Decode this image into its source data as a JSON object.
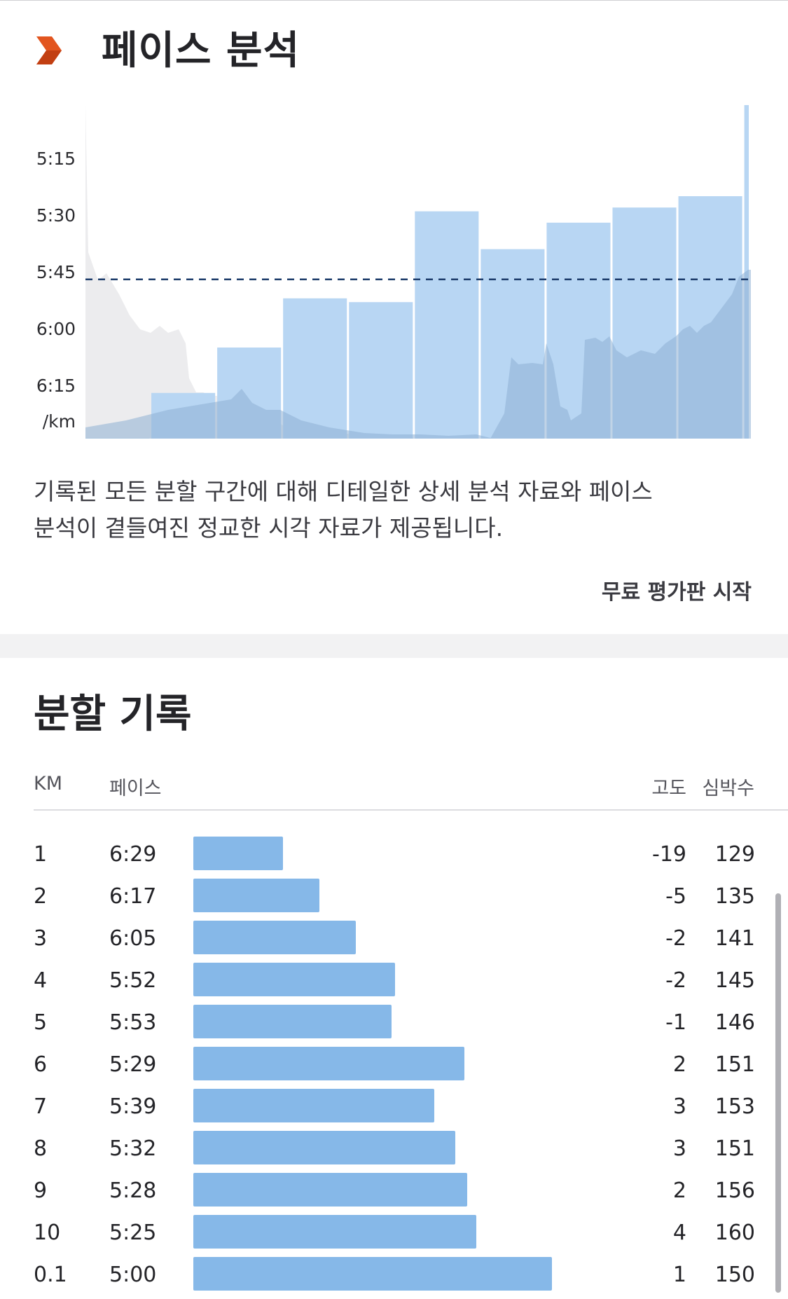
{
  "pace_analysis": {
    "title": "페이스 분석",
    "logo_icon": "strava-chevron-icon",
    "description_line1": "기록된 모든 분할 구간에 대해 디테일한 상세 분석 자료와 페이스",
    "description_line2": "분석이 곁들여진 정교한 시각 자료가 제공됩니다.",
    "trial_link": "무료 평가판 시작",
    "accent_color": "#e2551f",
    "bar_color": "#b8d6f3",
    "dashed_line_color": "#1d3c6b"
  },
  "chart_data": {
    "type": "bar",
    "y_ticks": [
      "5:15",
      "5:30",
      "5:45",
      "6:00",
      "6:15"
    ],
    "y_unit": "/km",
    "y_inverted": true,
    "categories": [
      "1",
      "2",
      "3",
      "4",
      "5",
      "6",
      "7",
      "8",
      "9",
      "10",
      "0.1"
    ],
    "values": [
      "6:29",
      "6:17",
      "6:05",
      "5:52",
      "5:53",
      "5:29",
      "5:39",
      "5:32",
      "5:28",
      "5:25",
      "5:00"
    ],
    "value_seconds": [
      389,
      377,
      365,
      352,
      353,
      329,
      339,
      332,
      328,
      325,
      300
    ],
    "average_pace_line": "5:47",
    "has_elevation_background": true
  },
  "splits": {
    "title": "분할 기록",
    "headers": {
      "km": "KM",
      "pace": "페이스",
      "elevation": "고도",
      "heart_rate": "심박수"
    },
    "bar_color": "#86b8e8",
    "rows": [
      {
        "km": "1",
        "pace": "6:29",
        "elevation": "-19",
        "heart_rate": "129"
      },
      {
        "km": "2",
        "pace": "6:17",
        "elevation": "-5",
        "heart_rate": "135"
      },
      {
        "km": "3",
        "pace": "6:05",
        "elevation": "-2",
        "heart_rate": "141"
      },
      {
        "km": "4",
        "pace": "5:52",
        "elevation": "-2",
        "heart_rate": "145"
      },
      {
        "km": "5",
        "pace": "5:53",
        "elevation": "-1",
        "heart_rate": "146"
      },
      {
        "km": "6",
        "pace": "5:29",
        "elevation": "2",
        "heart_rate": "151"
      },
      {
        "km": "7",
        "pace": "5:39",
        "elevation": "3",
        "heart_rate": "153"
      },
      {
        "km": "8",
        "pace": "5:32",
        "elevation": "3",
        "heart_rate": "151"
      },
      {
        "km": "9",
        "pace": "5:28",
        "elevation": "2",
        "heart_rate": "156"
      },
      {
        "km": "10",
        "pace": "5:25",
        "elevation": "4",
        "heart_rate": "160"
      },
      {
        "km": "0.1",
        "pace": "5:00",
        "elevation": "1",
        "heart_rate": "150"
      }
    ]
  }
}
